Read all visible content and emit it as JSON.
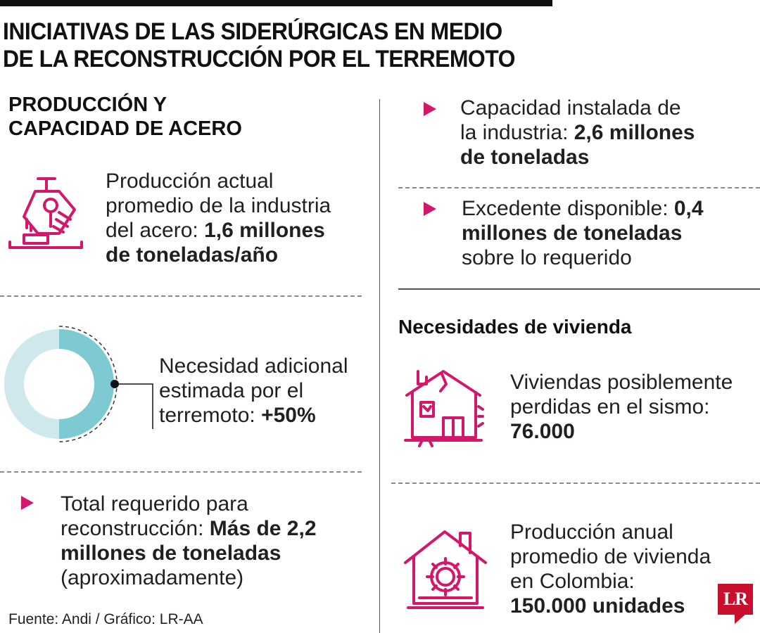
{
  "title": {
    "line1": "INICIATIVAS DE LAS SIDERÚRGICAS EN MEDIO",
    "line2": "DE LA RECONSTRUCCIÓN POR EL TERREMOTO"
  },
  "left": {
    "heading_line1": "PRODUCCIÓN Y",
    "heading_line2": "CAPACIDAD DE ACERO",
    "production": {
      "text1": "Producción actual",
      "text2": "promedio de la industria",
      "text3": "del acero: ",
      "value1": "1,6 millones",
      "value2": "de toneladas/año"
    },
    "need": {
      "text1": "Necesidad adicional",
      "text2": "estimada por el",
      "text3": "terremoto: ",
      "value": "+50%",
      "fraction": 0.5
    },
    "total": {
      "text1": "Total requerido para",
      "text2": "reconstrucción: ",
      "value1": "Más de 2,2",
      "value2": "millones de toneladas",
      "text3": "(aproximadamente)"
    },
    "source": "Fuente: Andi / Gráfico: LR-AA"
  },
  "right": {
    "capacity": {
      "text1": "Capacidad instalada de",
      "text2": "la industria: ",
      "value1": "2,6 millones",
      "value2": "de toneladas"
    },
    "surplus": {
      "text1": "Excedente disponible: ",
      "value1": "0,4",
      "value2": "millones de toneladas",
      "text2": "sobre lo requerido"
    },
    "housing_heading": "Necesidades de vivienda",
    "lost": {
      "text1": "Viviendas posiblemente",
      "text2": "perdidas en el sismo:",
      "value": "76.000"
    },
    "annual": {
      "text1": "Producción anual",
      "text2": "promedio de vivienda",
      "text3": "en Colombia:",
      "value": "150.000 unidades"
    }
  },
  "logo": "LR",
  "colors": {
    "accent": "#d3176b",
    "donut_dark": "#7ecad3",
    "donut_light": "#cfe8ec",
    "text": "#231f20"
  },
  "icons": [
    "steel-ladle-icon",
    "donut-chart",
    "damaged-house-icon",
    "house-gear-icon",
    "bullet-triangle-icon"
  ]
}
